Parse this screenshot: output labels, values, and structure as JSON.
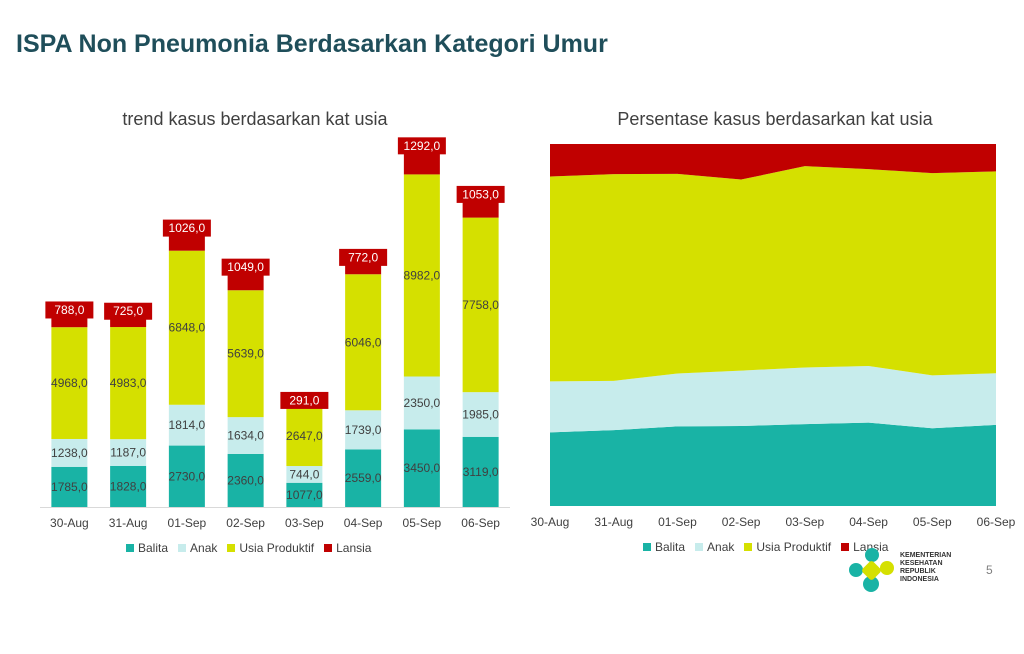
{
  "page": {
    "title": "ISPA Non Pneumonia Berdasarkan Kategori Umur",
    "page_number": "5",
    "logo_text": "KEMENTERIAN\nKESEHATAN\nREPUBLIK\nINDONESIA"
  },
  "colors": {
    "Balita": "#19b3a5",
    "Anak": "#c7ecec",
    "Usia Produktif": "#d5e000",
    "Lansia": "#c00000",
    "logo_teal": "#19b3a5",
    "logo_yellow": "#d5e000"
  },
  "legend": [
    "Balita",
    "Anak",
    "Usia Produktif",
    "Lansia"
  ],
  "chart_data": [
    {
      "type": "bar",
      "stacked": true,
      "title": "trend kasus berdasarkan kat usia",
      "categories": [
        "30-Aug",
        "31-Aug",
        "01-Sep",
        "02-Sep",
        "03-Sep",
        "04-Sep",
        "05-Sep",
        "06-Sep"
      ],
      "series": [
        {
          "name": "Balita",
          "values": [
            1785,
            1828,
            2730,
            2360,
            1077,
            2559,
            3450,
            3119
          ]
        },
        {
          "name": "Anak",
          "values": [
            1238,
            1187,
            1814,
            1634,
            744,
            1739,
            2350,
            1985
          ]
        },
        {
          "name": "Usia Produktif",
          "values": [
            4968,
            4983,
            6848,
            5639,
            2647,
            6046,
            8982,
            7758
          ]
        },
        {
          "name": "Lansia",
          "values": [
            788,
            725,
            1026,
            1049,
            291,
            772,
            1292,
            1053
          ]
        }
      ],
      "value_labels": {
        "Balita": [
          "1785,0",
          "1828,0",
          "2730,0",
          "2360,0",
          "1077,0",
          "2559,0",
          "3450,0",
          "3119,0"
        ],
        "Anak": [
          "1238,0",
          "1187,0",
          "1814,0",
          "1634,0",
          "744,0",
          "1739,0",
          "2350,0",
          "1985,0"
        ],
        "Usia Produktif": [
          "4968,0",
          "4983,0",
          "6848,0",
          "5639,0",
          "2647,0",
          "6046,0",
          "8982,0",
          "7758,0"
        ],
        "Lansia": [
          "788,0",
          "725,0",
          "1026,0",
          "1049,0",
          "291,0",
          "772,0",
          "1292,0",
          "1053,0"
        ]
      },
      "ylim": [
        0,
        16000
      ],
      "grid": false,
      "legend": "bottom"
    },
    {
      "type": "area",
      "stacked": "percent",
      "title": "Persentase kasus berdasarkan kat usia",
      "categories": [
        "30-Aug",
        "31-Aug",
        "01-Sep",
        "02-Sep",
        "03-Sep",
        "04-Sep",
        "05-Sep",
        "06-Sep"
      ],
      "series": [
        {
          "name": "Balita",
          "values": [
            1785,
            1828,
            2730,
            2360,
            1077,
            2559,
            3450,
            3119
          ]
        },
        {
          "name": "Anak",
          "values": [
            1238,
            1187,
            1814,
            1634,
            744,
            1739,
            2350,
            1985
          ]
        },
        {
          "name": "Usia Produktif",
          "values": [
            4968,
            4983,
            6848,
            5639,
            2647,
            6046,
            8982,
            7758
          ]
        },
        {
          "name": "Lansia",
          "values": [
            788,
            725,
            1026,
            1049,
            291,
            772,
            1292,
            1053
          ]
        }
      ],
      "ylim": [
        0,
        100
      ],
      "grid": false,
      "legend": "bottom"
    }
  ]
}
